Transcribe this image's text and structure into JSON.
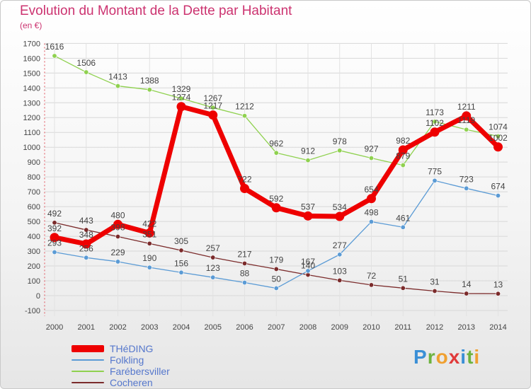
{
  "title": "Evolution du Montant de la Dette par Habitant",
  "subtitle": "(en €)",
  "logo": {
    "text": "Proxiti",
    "colors": [
      "#3a8fd6",
      "#6db33f",
      "#f0a030",
      "#e03a3a",
      "#3a8fd6",
      "#6db33f",
      "#f0a030"
    ]
  },
  "chart_data": {
    "type": "line",
    "title": "Evolution du Montant de la Dette par Habitant",
    "subtitle": "(en €)",
    "x": [
      "2000",
      "2001",
      "2002",
      "2003",
      "2004",
      "2005",
      "2006",
      "2007",
      "2008",
      "2009",
      "2010",
      "2011",
      "2012",
      "2013",
      "2014"
    ],
    "ylim": [
      -100,
      1700
    ],
    "yticks": [
      -100,
      0,
      100,
      200,
      300,
      400,
      500,
      600,
      700,
      800,
      900,
      1000,
      1100,
      1200,
      1300,
      1400,
      1500,
      1600,
      1700
    ],
    "grid": true,
    "legend_position": "bottom-left",
    "series": [
      {
        "name": "THéDING",
        "color": "#ee0000",
        "values": [
          392,
          348,
          480,
          422,
          1274,
          1217,
          722,
          592,
          537,
          534,
          654,
          982,
          1102,
          1211,
          1002
        ]
      },
      {
        "name": "Folkling",
        "color": "#5b9bd5",
        "values": [
          293,
          256,
          229,
          190,
          156,
          123,
          88,
          50,
          167,
          277,
          498,
          461,
          775,
          723,
          674
        ]
      },
      {
        "name": "Farébersviller",
        "color": "#8fd14f",
        "values": [
          1616,
          1506,
          1413,
          1388,
          1329,
          1267,
          1212,
          962,
          912,
          978,
          927,
          879,
          1173,
          1119,
          1074
        ]
      },
      {
        "name": "Cocheren",
        "color": "#7b2b2b",
        "values": [
          492,
          443,
          398,
          351,
          305,
          257,
          217,
          179,
          140,
          103,
          72,
          51,
          31,
          14,
          13
        ]
      }
    ]
  }
}
